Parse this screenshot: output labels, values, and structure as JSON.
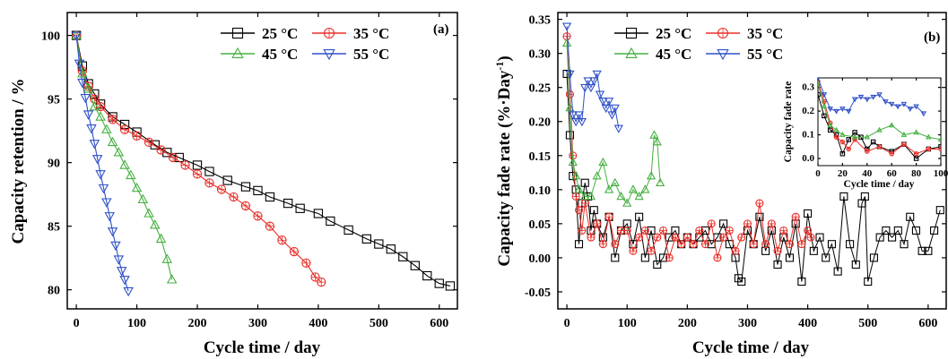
{
  "colors": {
    "25": "#000000",
    "35": "#e8302a",
    "45": "#45b040",
    "55": "#2e50c8"
  },
  "chart_data": [
    {
      "type": "line",
      "panel_label": "(a)",
      "xlabel": "Cycle time / day",
      "ylabel": "Capacity retention / %",
      "xlim": [
        -15,
        630
      ],
      "ylim": [
        78.5,
        101.8
      ],
      "xticks": [
        0,
        100,
        200,
        300,
        400,
        500,
        600
      ],
      "yticks": [
        80,
        85,
        90,
        95,
        100
      ],
      "legend_position": "top-right",
      "series": [
        {
          "name": "25 °C",
          "color": "#000000",
          "marker": "square",
          "x": [
            0,
            10,
            20,
            30,
            40,
            60,
            80,
            100,
            130,
            150,
            170,
            200,
            220,
            250,
            280,
            300,
            320,
            350,
            370,
            400,
            420,
            450,
            480,
            500,
            520,
            540,
            560,
            580,
            600,
            618
          ],
          "y": [
            100,
            97.6,
            96.2,
            95.4,
            94.6,
            93.6,
            93.0,
            92.4,
            91.4,
            90.8,
            90.4,
            89.8,
            89.3,
            88.6,
            88.1,
            87.8,
            87.3,
            86.8,
            86.4,
            86.0,
            85.4,
            84.7,
            84.0,
            83.6,
            83.2,
            82.6,
            81.9,
            81.1,
            80.5,
            80.3
          ]
        },
        {
          "name": "35 °C",
          "color": "#e8302a",
          "marker": "circle",
          "x": [
            0,
            10,
            20,
            30,
            40,
            60,
            80,
            100,
            120,
            140,
            160,
            180,
            200,
            220,
            240,
            260,
            280,
            300,
            320,
            340,
            360,
            380,
            395,
            405
          ],
          "y": [
            100,
            97.2,
            96.0,
            95.0,
            94.4,
            93.4,
            92.6,
            92.1,
            91.6,
            91.0,
            90.4,
            89.8,
            89.1,
            88.4,
            87.9,
            87.3,
            86.6,
            85.8,
            85.0,
            83.9,
            83.0,
            82.1,
            81.0,
            80.6
          ]
        },
        {
          "name": "45 °C",
          "color": "#45b040",
          "marker": "triangle-up",
          "x": [
            0,
            10,
            20,
            30,
            40,
            50,
            60,
            70,
            80,
            90,
            100,
            110,
            120,
            130,
            140,
            150,
            158
          ],
          "y": [
            100,
            97.0,
            95.8,
            94.4,
            93.6,
            92.6,
            91.6,
            90.8,
            89.8,
            89.0,
            88.0,
            87.1,
            86.0,
            85.1,
            84.0,
            82.4,
            80.8
          ]
        },
        {
          "name": "55 °C",
          "color": "#2e50c8",
          "marker": "triangle-down",
          "x": [
            0,
            5,
            10,
            15,
            20,
            25,
            30,
            35,
            40,
            45,
            50,
            55,
            60,
            65,
            70,
            75,
            80,
            86
          ],
          "y": [
            100,
            97.8,
            96.3,
            95.1,
            93.8,
            92.7,
            91.5,
            90.3,
            89.1,
            88.0,
            86.9,
            85.8,
            84.6,
            83.5,
            82.4,
            81.5,
            80.8,
            79.9
          ]
        }
      ]
    },
    {
      "type": "line",
      "panel_label": "(b)",
      "xlabel": "Cycle time / day",
      "ylabel": "Capacity fade rate (%·Day⁻¹)",
      "xlim": [
        -15,
        630
      ],
      "ylim": [
        -0.075,
        0.36
      ],
      "xticks": [
        0,
        100,
        200,
        300,
        400,
        500,
        600
      ],
      "yticks": [
        -0.05,
        0.0,
        0.05,
        0.1,
        0.15,
        0.2,
        0.25,
        0.3,
        0.35
      ],
      "legend_position": "top-left",
      "series": [
        {
          "name": "25 °C",
          "color": "#000000",
          "marker": "square",
          "x": [
            0,
            5,
            10,
            15,
            20,
            25,
            30,
            35,
            40,
            45,
            50,
            60,
            70,
            80,
            90,
            100,
            110,
            120,
            130,
            140,
            150,
            160,
            170,
            180,
            190,
            200,
            210,
            220,
            230,
            240,
            250,
            260,
            270,
            280,
            285,
            290,
            300,
            310,
            320,
            330,
            340,
            350,
            360,
            370,
            380,
            390,
            400,
            410,
            420,
            430,
            440,
            450,
            460,
            470,
            480,
            490,
            495,
            500,
            510,
            520,
            530,
            540,
            550,
            560,
            570,
            580,
            590,
            600,
            610,
            620
          ],
          "y": [
            0.27,
            0.18,
            0.12,
            0.1,
            0.02,
            0.08,
            0.11,
            0.09,
            0.04,
            0.07,
            0.05,
            0.03,
            0.06,
            0.0,
            0.04,
            0.05,
            0.02,
            0.06,
            0.0,
            0.04,
            -0.01,
            0.0,
            0.03,
            0.04,
            0.02,
            0.03,
            0.02,
            0.03,
            0.04,
            0.02,
            0.03,
            0.05,
            0.02,
            0.0,
            -0.03,
            -0.035,
            0.04,
            0.02,
            0.06,
            0.01,
            0.04,
            -0.01,
            0.03,
            0.0,
            0.05,
            -0.035,
            0.065,
            0.01,
            0.03,
            0.0,
            0.02,
            -0.02,
            0.09,
            0.02,
            -0.01,
            0.08,
            0.09,
            -0.035,
            0.0,
            0.03,
            0.04,
            0.03,
            0.04,
            0.02,
            0.06,
            0.04,
            0.01,
            0.01,
            0.04,
            0.07
          ]
        },
        {
          "name": "35 °C",
          "color": "#e8302a",
          "marker": "circle",
          "x": [
            0,
            5,
            10,
            15,
            20,
            25,
            30,
            40,
            50,
            60,
            70,
            80,
            90,
            100,
            110,
            120,
            130,
            140,
            150,
            160,
            170,
            180,
            190,
            200,
            210,
            220,
            230,
            240,
            250,
            260,
            270,
            280,
            290,
            300,
            310,
            320,
            330,
            340,
            350,
            360,
            370,
            380,
            390,
            400,
            405
          ],
          "y": [
            0.325,
            0.24,
            0.15,
            0.09,
            0.07,
            0.04,
            0.08,
            0.03,
            0.05,
            0.02,
            0.06,
            0.02,
            0.04,
            0.04,
            0.01,
            0.03,
            0.04,
            0.01,
            0.03,
            0.04,
            0.0,
            0.03,
            0.02,
            0.03,
            0.02,
            0.04,
            0.02,
            0.05,
            0.0,
            0.03,
            0.04,
            0.01,
            0.03,
            0.05,
            0.02,
            0.08,
            0.02,
            0.05,
            0.01,
            0.04,
            0.02,
            0.06,
            0.02,
            0.04,
            0.03
          ]
        },
        {
          "name": "45 °C",
          "color": "#45b040",
          "marker": "triangle-up",
          "x": [
            0,
            5,
            10,
            15,
            20,
            30,
            40,
            50,
            60,
            70,
            80,
            90,
            100,
            110,
            120,
            130,
            140,
            145,
            150,
            155
          ],
          "y": [
            0.315,
            0.22,
            0.14,
            0.12,
            0.1,
            0.09,
            0.09,
            0.12,
            0.14,
            0.1,
            0.11,
            0.09,
            0.08,
            0.1,
            0.09,
            0.1,
            0.12,
            0.18,
            0.17,
            0.11
          ]
        },
        {
          "name": "55 °C",
          "color": "#2e50c8",
          "marker": "triangle-down",
          "x": [
            0,
            5,
            10,
            15,
            20,
            25,
            30,
            35,
            40,
            45,
            50,
            55,
            60,
            65,
            70,
            75,
            80,
            86
          ],
          "y": [
            0.34,
            0.27,
            0.21,
            0.2,
            0.21,
            0.2,
            0.25,
            0.26,
            0.25,
            0.26,
            0.27,
            0.24,
            0.23,
            0.22,
            0.23,
            0.21,
            0.22,
            0.19
          ]
        }
      ]
    },
    {
      "type": "line",
      "role": "inset of panel (b)",
      "xlabel": "Cycle time / day",
      "ylabel": "Capacity fade rate",
      "xlim": [
        0,
        100
      ],
      "ylim": [
        -0.03,
        0.34
      ],
      "xticks": [
        0,
        20,
        40,
        60,
        80,
        100
      ],
      "yticks": [
        0.0,
        0.1,
        0.2,
        0.3
      ],
      "series": [
        {
          "name": "25 °C",
          "color": "#000000",
          "marker": "square",
          "x": [
            0,
            5,
            10,
            15,
            20,
            25,
            30,
            35,
            40,
            45,
            50,
            60,
            70,
            80,
            90,
            100
          ],
          "y": [
            0.27,
            0.18,
            0.12,
            0.1,
            0.02,
            0.08,
            0.11,
            0.09,
            0.04,
            0.07,
            0.05,
            0.03,
            0.06,
            0.0,
            0.04,
            0.05
          ]
        },
        {
          "name": "35 °C",
          "color": "#e8302a",
          "marker": "circle",
          "x": [
            0,
            5,
            10,
            15,
            20,
            25,
            30,
            40,
            50,
            60,
            70,
            80,
            90,
            100
          ],
          "y": [
            0.325,
            0.24,
            0.15,
            0.09,
            0.07,
            0.04,
            0.08,
            0.03,
            0.05,
            0.02,
            0.06,
            0.02,
            0.04,
            0.04
          ]
        },
        {
          "name": "45 °C",
          "color": "#45b040",
          "marker": "triangle-up",
          "x": [
            0,
            5,
            10,
            15,
            20,
            30,
            40,
            50,
            60,
            70,
            80,
            90,
            100
          ],
          "y": [
            0.315,
            0.22,
            0.14,
            0.12,
            0.1,
            0.09,
            0.09,
            0.12,
            0.14,
            0.1,
            0.11,
            0.09,
            0.08
          ]
        },
        {
          "name": "55 °C",
          "color": "#2e50c8",
          "marker": "triangle-down",
          "x": [
            0,
            5,
            10,
            15,
            20,
            25,
            30,
            35,
            40,
            45,
            50,
            55,
            60,
            65,
            70,
            75,
            80,
            86
          ],
          "y": [
            0.34,
            0.27,
            0.21,
            0.2,
            0.21,
            0.2,
            0.25,
            0.26,
            0.25,
            0.26,
            0.27,
            0.24,
            0.23,
            0.22,
            0.23,
            0.21,
            0.22,
            0.19
          ]
        }
      ]
    }
  ]
}
